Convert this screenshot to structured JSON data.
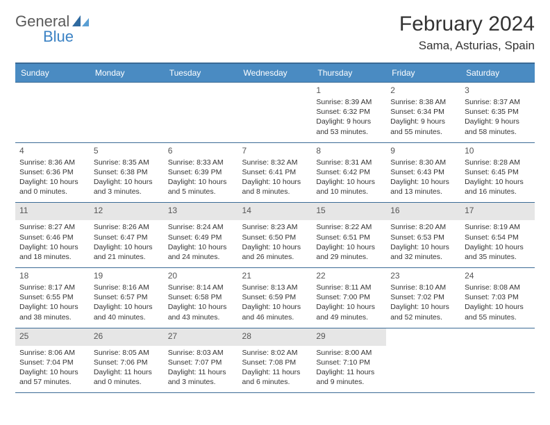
{
  "logo": {
    "text1": "General",
    "text2": "Blue"
  },
  "header": {
    "month_title": "February 2024",
    "location": "Sama, Asturias, Spain"
  },
  "style": {
    "header_bg": "#4a8bc2",
    "header_border": "#3a6a95",
    "shade_bg": "#e6e6e6",
    "text_color": "#333333",
    "logo_gray": "#5a5a5a",
    "logo_blue": "#3b82c4"
  },
  "day_names": [
    "Sunday",
    "Monday",
    "Tuesday",
    "Wednesday",
    "Thursday",
    "Friday",
    "Saturday"
  ],
  "weeks": [
    [
      null,
      null,
      null,
      null,
      {
        "n": "1",
        "sr": "8:39 AM",
        "ss": "6:32 PM",
        "dl": "9 hours and 53 minutes."
      },
      {
        "n": "2",
        "sr": "8:38 AM",
        "ss": "6:34 PM",
        "dl": "9 hours and 55 minutes."
      },
      {
        "n": "3",
        "sr": "8:37 AM",
        "ss": "6:35 PM",
        "dl": "9 hours and 58 minutes."
      }
    ],
    [
      {
        "n": "4",
        "sr": "8:36 AM",
        "ss": "6:36 PM",
        "dl": "10 hours and 0 minutes."
      },
      {
        "n": "5",
        "sr": "8:35 AM",
        "ss": "6:38 PM",
        "dl": "10 hours and 3 minutes."
      },
      {
        "n": "6",
        "sr": "8:33 AM",
        "ss": "6:39 PM",
        "dl": "10 hours and 5 minutes."
      },
      {
        "n": "7",
        "sr": "8:32 AM",
        "ss": "6:41 PM",
        "dl": "10 hours and 8 minutes."
      },
      {
        "n": "8",
        "sr": "8:31 AM",
        "ss": "6:42 PM",
        "dl": "10 hours and 10 minutes."
      },
      {
        "n": "9",
        "sr": "8:30 AM",
        "ss": "6:43 PM",
        "dl": "10 hours and 13 minutes."
      },
      {
        "n": "10",
        "sr": "8:28 AM",
        "ss": "6:45 PM",
        "dl": "10 hours and 16 minutes."
      }
    ],
    [
      {
        "n": "11",
        "sr": "8:27 AM",
        "ss": "6:46 PM",
        "dl": "10 hours and 18 minutes.",
        "sh": true
      },
      {
        "n": "12",
        "sr": "8:26 AM",
        "ss": "6:47 PM",
        "dl": "10 hours and 21 minutes.",
        "sh": true
      },
      {
        "n": "13",
        "sr": "8:24 AM",
        "ss": "6:49 PM",
        "dl": "10 hours and 24 minutes.",
        "sh": true
      },
      {
        "n": "14",
        "sr": "8:23 AM",
        "ss": "6:50 PM",
        "dl": "10 hours and 26 minutes.",
        "sh": true
      },
      {
        "n": "15",
        "sr": "8:22 AM",
        "ss": "6:51 PM",
        "dl": "10 hours and 29 minutes.",
        "sh": true
      },
      {
        "n": "16",
        "sr": "8:20 AM",
        "ss": "6:53 PM",
        "dl": "10 hours and 32 minutes.",
        "sh": true
      },
      {
        "n": "17",
        "sr": "8:19 AM",
        "ss": "6:54 PM",
        "dl": "10 hours and 35 minutes.",
        "sh": true
      }
    ],
    [
      {
        "n": "18",
        "sr": "8:17 AM",
        "ss": "6:55 PM",
        "dl": "10 hours and 38 minutes."
      },
      {
        "n": "19",
        "sr": "8:16 AM",
        "ss": "6:57 PM",
        "dl": "10 hours and 40 minutes."
      },
      {
        "n": "20",
        "sr": "8:14 AM",
        "ss": "6:58 PM",
        "dl": "10 hours and 43 minutes."
      },
      {
        "n": "21",
        "sr": "8:13 AM",
        "ss": "6:59 PM",
        "dl": "10 hours and 46 minutes."
      },
      {
        "n": "22",
        "sr": "8:11 AM",
        "ss": "7:00 PM",
        "dl": "10 hours and 49 minutes."
      },
      {
        "n": "23",
        "sr": "8:10 AM",
        "ss": "7:02 PM",
        "dl": "10 hours and 52 minutes."
      },
      {
        "n": "24",
        "sr": "8:08 AM",
        "ss": "7:03 PM",
        "dl": "10 hours and 55 minutes."
      }
    ],
    [
      {
        "n": "25",
        "sr": "8:06 AM",
        "ss": "7:04 PM",
        "dl": "10 hours and 57 minutes.",
        "sh": true
      },
      {
        "n": "26",
        "sr": "8:05 AM",
        "ss": "7:06 PM",
        "dl": "11 hours and 0 minutes.",
        "sh": true
      },
      {
        "n": "27",
        "sr": "8:03 AM",
        "ss": "7:07 PM",
        "dl": "11 hours and 3 minutes.",
        "sh": true
      },
      {
        "n": "28",
        "sr": "8:02 AM",
        "ss": "7:08 PM",
        "dl": "11 hours and 6 minutes.",
        "sh": true
      },
      {
        "n": "29",
        "sr": "8:00 AM",
        "ss": "7:10 PM",
        "dl": "11 hours and 9 minutes.",
        "sh": true
      },
      null,
      null
    ]
  ],
  "labels": {
    "sunrise": "Sunrise:",
    "sunset": "Sunset:",
    "daylight": "Daylight:"
  }
}
